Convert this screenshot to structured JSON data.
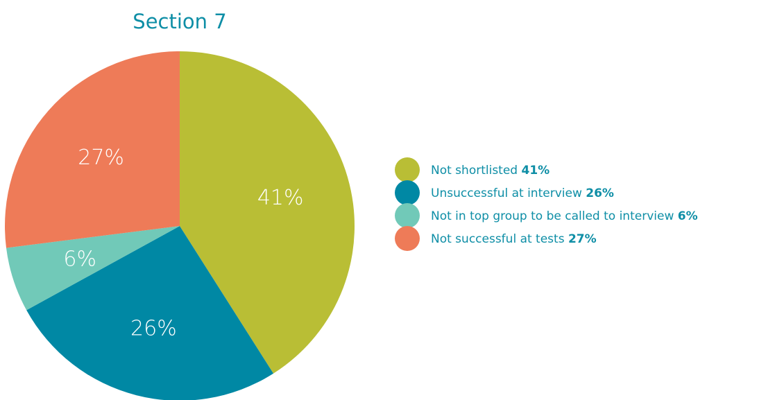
{
  "chart_data": {
    "type": "pie",
    "title": "Section 7",
    "slices": [
      {
        "name": "Not shortlisted",
        "value": 41,
        "label": "41%",
        "color": "#b9be35"
      },
      {
        "name": "Unsuccessful at interview",
        "value": 26,
        "label": "26%",
        "color": "#0088a4"
      },
      {
        "name": "Not in top group to be called to interview",
        "value": 6,
        "label": "6%",
        "color": "#71c9b8"
      },
      {
        "name": "Not successful at tests",
        "value": 27,
        "label": "27%",
        "color": "#ee7b58"
      }
    ],
    "start": "12 o'clock",
    "direction": "clockwise",
    "legend_position": "right"
  }
}
